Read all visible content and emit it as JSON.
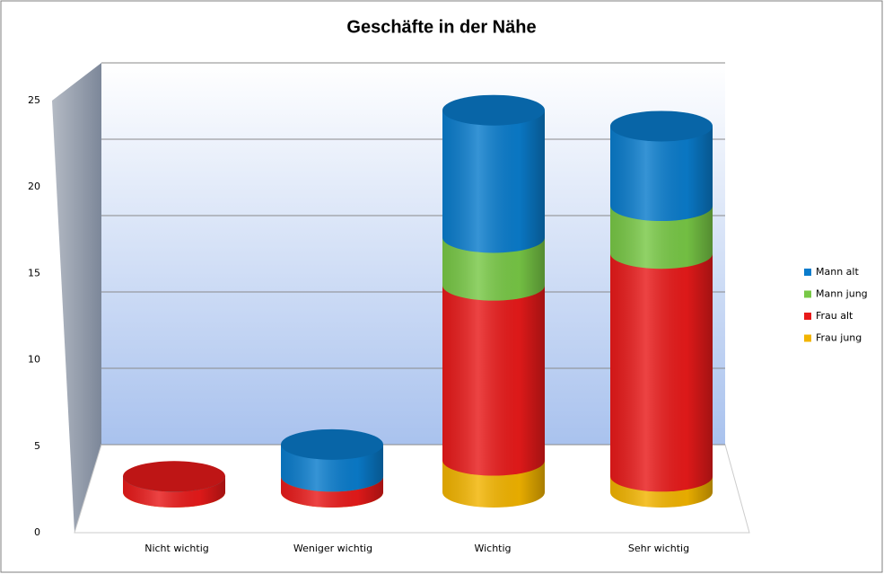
{
  "chart_data": {
    "type": "bar3d-stacked",
    "title": "Geschäfte in der Nähe",
    "categories": [
      "Nicht wichtig",
      "Weniger wichtig",
      "Wichtig",
      "Sehr wichtig"
    ],
    "series": [
      {
        "name": "Frau jung",
        "color": "#f2b400",
        "values": [
          0,
          0,
          2,
          1
        ]
      },
      {
        "name": "Frau alt",
        "color": "#e81a1a",
        "values": [
          1,
          1,
          11,
          14
        ]
      },
      {
        "name": "Mann jung",
        "color": "#78c846",
        "values": [
          0,
          0,
          3,
          3
        ]
      },
      {
        "name": "Mann alt",
        "color": "#0a7ccc",
        "values": [
          0,
          2,
          8,
          5
        ]
      }
    ],
    "ylim": [
      0,
      25
    ],
    "yticks": [
      0,
      5,
      10,
      15,
      20,
      25
    ],
    "grid": true
  }
}
